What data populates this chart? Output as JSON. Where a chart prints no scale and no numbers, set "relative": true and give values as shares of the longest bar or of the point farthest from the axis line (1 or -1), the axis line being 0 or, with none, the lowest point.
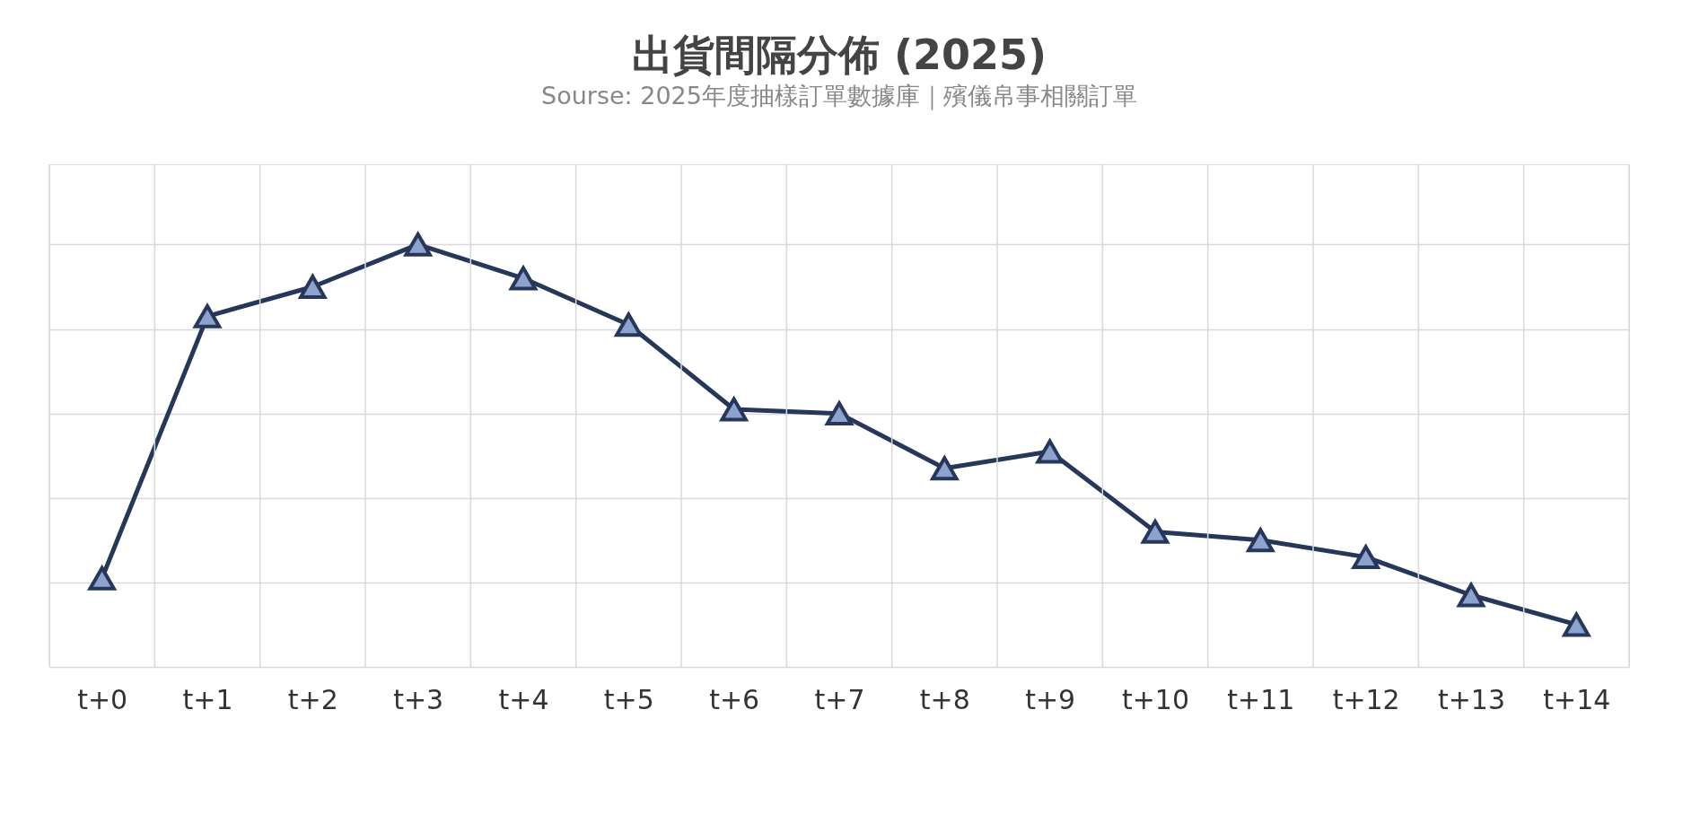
{
  "chart_data": {
    "type": "line",
    "title": "出貨間隔分佈 (2025)",
    "subtitle": "Sourse: 2025年度抽樣訂單數據庫｜殯儀帛事相關訂單",
    "categories": [
      "t+0",
      "t+1",
      "t+2",
      "t+3",
      "t+4",
      "t+5",
      "t+6",
      "t+7",
      "t+8",
      "t+9",
      "t+10",
      "t+11",
      "t+12",
      "t+13",
      "t+14"
    ],
    "series": [
      {
        "color": "#26375a",
        "values": [
          0.21,
          0.83,
          0.9,
          1,
          0.92,
          0.81,
          0.61,
          0.6,
          0.47,
          0.51,
          0.32,
          0.3,
          0.26,
          0.17,
          0.1
        ]
      }
    ],
    "relative": true,
    "grid": true,
    "marker": "triangle",
    "line_style": "solid"
  }
}
